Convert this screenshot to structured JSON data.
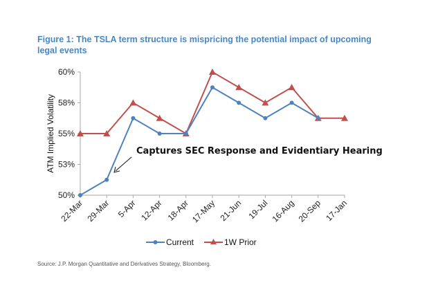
{
  "figure_title": "Figure 1: The TSLA term structure is mispricing the potential impact of upcoming legal events",
  "source": "Source: J.P. Morgan Quantitative and Derivatives Strategy, Bloomberg.",
  "chart_data": {
    "type": "line",
    "title": "Figure 1: The TSLA term structure is mispricing the potential impact of upcoming legal events",
    "xlabel": "",
    "ylabel": "ATM Implied Volatility",
    "categories": [
      "22-Mar",
      "29-Mar",
      "5-Apr",
      "12-Apr",
      "18-Apr",
      "17-May",
      "21-Jun",
      "19-Jul",
      "16-Aug",
      "20-Sep",
      "17-Jan"
    ],
    "yticks": [
      50,
      52.5,
      55,
      57.5,
      60
    ],
    "ytick_labels": [
      "50%",
      "53%",
      "55%",
      "58%",
      "60%"
    ],
    "ylim": [
      50,
      60
    ],
    "grid": false,
    "legend_position": "bottom",
    "series": [
      {
        "name": "Current",
        "color": "#4f81bd",
        "marker": "circle",
        "values": [
          50.0,
          51.25,
          56.25,
          55.0,
          55.0,
          58.75,
          57.5,
          56.25,
          57.5,
          56.25,
          null
        ]
      },
      {
        "name": "1W Prior",
        "color": "#c0504d",
        "marker": "triangle",
        "values": [
          55.0,
          55.0,
          57.5,
          56.25,
          55.0,
          60.0,
          58.75,
          57.5,
          58.75,
          56.25,
          56.25
        ]
      }
    ],
    "annotations": [
      {
        "text": "Captures SEC Response and Evidentiary Hearing",
        "points_to": "29-Mar"
      }
    ]
  }
}
